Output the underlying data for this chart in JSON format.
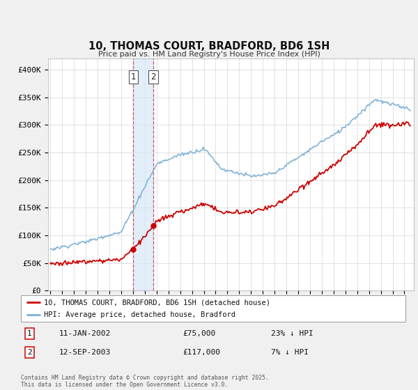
{
  "title": "10, THOMAS COURT, BRADFORD, BD6 1SH",
  "subtitle": "Price paid vs. HM Land Registry's House Price Index (HPI)",
  "ylim": [
    0,
    420000
  ],
  "yticks": [
    0,
    50000,
    100000,
    150000,
    200000,
    250000,
    300000,
    350000,
    400000
  ],
  "ytick_labels": [
    "£0",
    "£50K",
    "£100K",
    "£150K",
    "£200K",
    "£250K",
    "£300K",
    "£350K",
    "£400K"
  ],
  "hpi_color": "#7bafd4",
  "property_color": "#cc0000",
  "transaction1_date_num": 2002.03,
  "transaction1_price": 75000,
  "transaction2_date_num": 2003.71,
  "transaction2_price": 117000,
  "transaction1_date_str": "11-JAN-2002",
  "transaction2_date_str": "12-SEP-2003",
  "transaction1_hpi_pct": "23% ↓ HPI",
  "transaction2_hpi_pct": "7% ↓ HPI",
  "legend_property": "10, THOMAS COURT, BRADFORD, BD6 1SH (detached house)",
  "legend_hpi": "HPI: Average price, detached house, Bradford",
  "footnote": "Contains HM Land Registry data © Crown copyright and database right 2025.\nThis data is licensed under the Open Government Licence v3.0.",
  "background_color": "#f0f0f0",
  "plot_background": "#ffffff"
}
